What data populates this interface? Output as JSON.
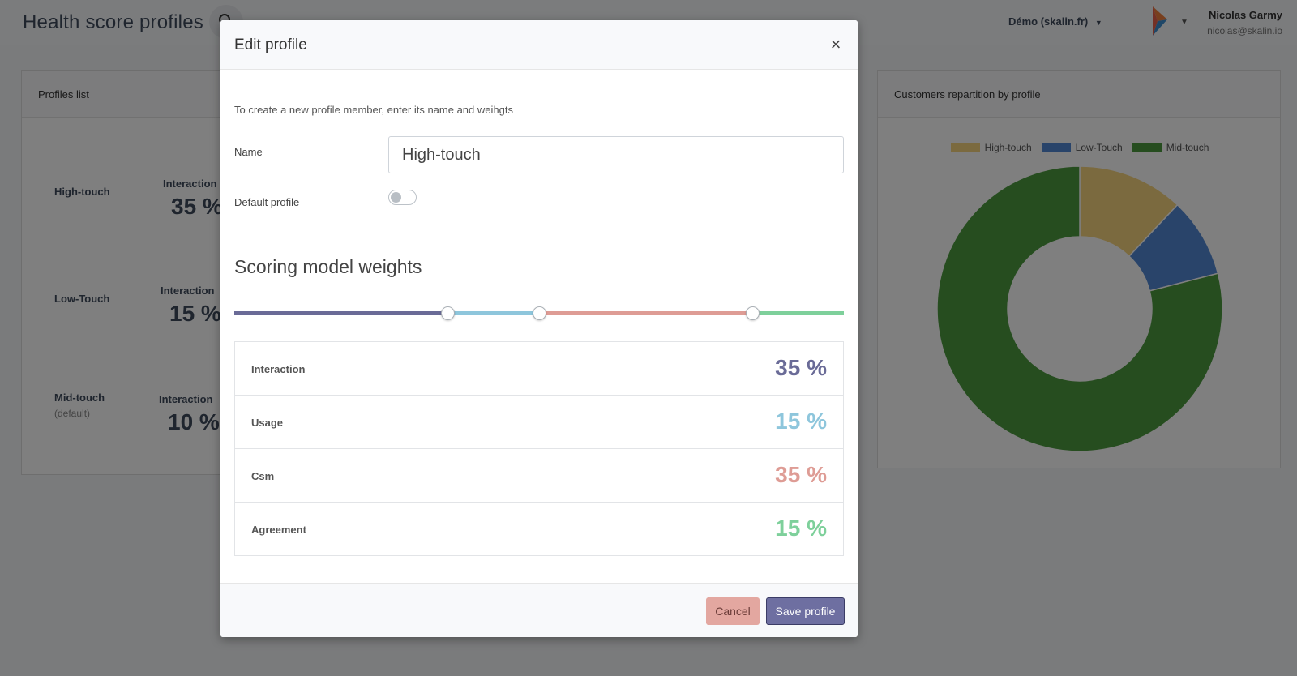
{
  "header": {
    "title": "Health score profiles",
    "account_label": "Démo (skalin.fr)",
    "user_name": "Nicolas Garmy",
    "user_email": "nicolas@skalin.io"
  },
  "profiles_card": {
    "title": "Profiles list",
    "profiles": [
      {
        "name": "High-touch",
        "metric_label": "Interaction",
        "metric_value": "35 %",
        "default_text": ""
      },
      {
        "name": "Low-Touch",
        "metric_label": "Interaction",
        "metric_value": "15 %",
        "default_text": ""
      },
      {
        "name": "Mid-touch",
        "metric_label": "Interaction",
        "metric_value": "10 %",
        "default_text": "(default)"
      }
    ]
  },
  "chart_card": {
    "title": "Customers repartition by profile"
  },
  "chart_data": {
    "type": "pie",
    "variant": "donut",
    "categories": [
      "High-touch",
      "Low-Touch",
      "Mid-touch"
    ],
    "values": [
      12,
      9,
      79
    ],
    "colors": [
      "#f7d57e",
      "#5389d4",
      "#4c9a3e"
    ],
    "legend": "top"
  },
  "modal": {
    "title": "Edit profile",
    "close_glyph": "×",
    "intro": "To create a new profile member, enter its name and weihgts",
    "name_label": "Name",
    "name_value": "High-touch",
    "default_label": "Default profile",
    "default_on": false,
    "section_title": "Scoring model weights",
    "weights": [
      {
        "name": "Interaction",
        "value": 35,
        "display": "35 %",
        "color": "#6a6b97"
      },
      {
        "name": "Usage",
        "value": 15,
        "display": "15 %",
        "color": "#8ec6dc"
      },
      {
        "name": "Csm",
        "value": 35,
        "display": "35 %",
        "color": "#de9c95"
      },
      {
        "name": "Agreement",
        "value": 15,
        "display": "15 %",
        "color": "#7ed09b"
      }
    ],
    "cancel_label": "Cancel",
    "save_label": "Save profile"
  }
}
